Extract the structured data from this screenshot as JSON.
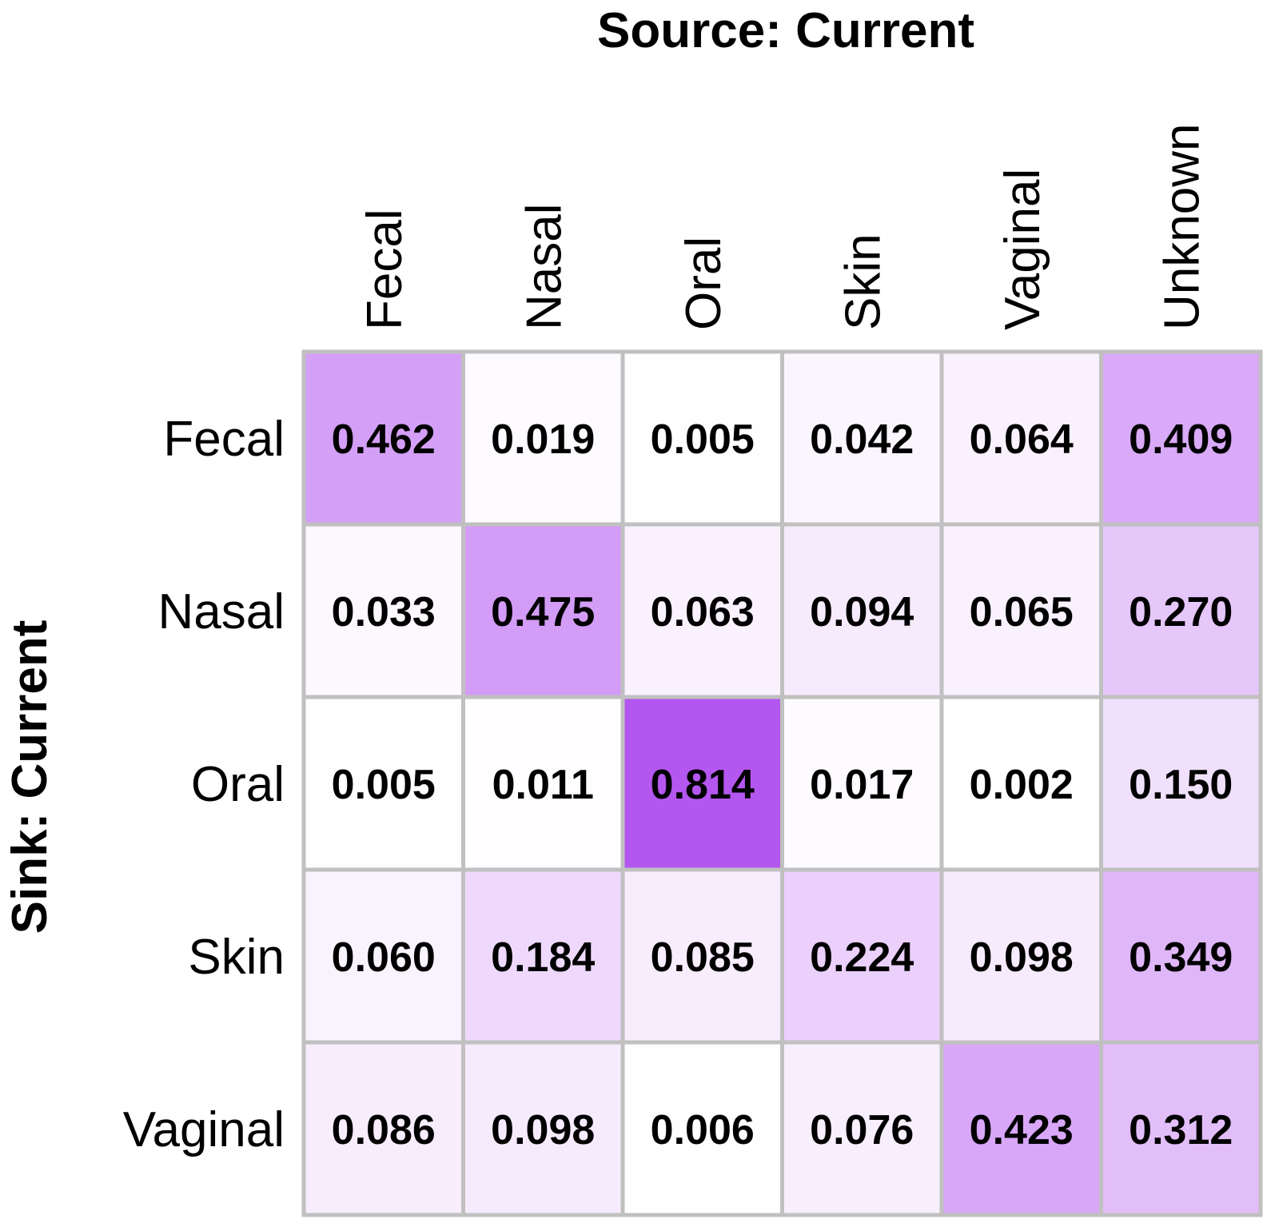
{
  "chart_data": {
    "type": "heatmap",
    "title": "Source: Current",
    "xlabel": "Source: Current",
    "ylabel": "Sink: Current",
    "columns": [
      "Fecal",
      "Nasal",
      "Oral",
      "Skin",
      "Vaginal",
      "Unknown"
    ],
    "rows": [
      "Fecal",
      "Nasal",
      "Oral",
      "Skin",
      "Vaginal"
    ],
    "values": [
      [
        0.462,
        0.019,
        0.005,
        0.042,
        0.064,
        0.409
      ],
      [
        0.033,
        0.475,
        0.063,
        0.094,
        0.065,
        0.27
      ],
      [
        0.005,
        0.011,
        0.814,
        0.017,
        0.002,
        0.15
      ],
      [
        0.06,
        0.184,
        0.085,
        0.224,
        0.098,
        0.349
      ],
      [
        0.086,
        0.098,
        0.006,
        0.076,
        0.423,
        0.312
      ]
    ],
    "value_labels": [
      [
        "0.462",
        "0.019",
        "0.005",
        "0.042",
        "0.064",
        "0.409"
      ],
      [
        "0.033",
        "0.475",
        "0.063",
        "0.094",
        "0.065",
        "0.270"
      ],
      [
        "0.005",
        "0.011",
        "0.814",
        "0.017",
        "0.002",
        "0.150"
      ],
      [
        "0.060",
        "0.184",
        "0.085",
        "0.224",
        "0.098",
        "0.349"
      ],
      [
        "0.086",
        "0.098",
        "0.006",
        "0.076",
        "0.423",
        "0.312"
      ]
    ],
    "color_low": "#ffffff",
    "color_high": "#b456f0",
    "grid_color": "#c0c0c0",
    "vmin": 0,
    "vmax": 0.814
  }
}
